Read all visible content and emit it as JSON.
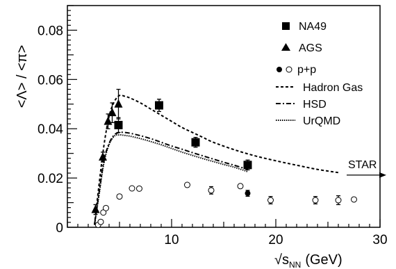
{
  "chart_data": {
    "type": "scatter",
    "xlabel": "√s_NN (GeV)",
    "xlabel_parts": {
      "root_symbol": "√",
      "base": "s",
      "subscript": "NN",
      "unit": "(GeV)"
    },
    "ylabel": "<Λ> / <π>",
    "xlim": [
      0,
      30
    ],
    "ylim": [
      0,
      0.09
    ],
    "x_ticks": [
      10,
      20,
      30
    ],
    "x_tick_labels": [
      "10",
      "20",
      "30"
    ],
    "y_ticks": [
      0,
      0.02,
      0.04,
      0.06,
      0.08
    ],
    "y_tick_labels": [
      "0",
      "0.02",
      "0.04",
      "0.06",
      "0.08"
    ],
    "grid": false,
    "legend_position": "top-right",
    "legend": {
      "markers": [
        {
          "label": "NA49",
          "symbol": "square"
        },
        {
          "label": "AGS",
          "symbol": "triangle"
        },
        {
          "label": "p+p",
          "symbol": "circle-filled-open"
        }
      ],
      "curves": [
        {
          "label": "Hadron Gas",
          "style": "dashed"
        },
        {
          "label": "HSD",
          "style": "dash-dot"
        },
        {
          "label": "UrQMD",
          "style": "dotted"
        }
      ]
    },
    "series": [
      {
        "name": "NA49",
        "marker": "square",
        "x": [
          4.9,
          8.8,
          12.3,
          17.3
        ],
        "y": [
          0.0415,
          0.0495,
          0.0345,
          0.0253
        ],
        "yerr": [
          0.003,
          0.0025,
          0.002,
          0.002
        ]
      },
      {
        "name": "AGS",
        "marker": "triangle",
        "x": [
          2.7,
          3.4,
          3.9,
          4.3,
          4.9
        ],
        "y": [
          0.0072,
          0.0285,
          0.043,
          0.0465,
          0.05
        ],
        "yerr": [
          0.002,
          0.002,
          0.003,
          0.004,
          0.006
        ]
      },
      {
        "name": "p+p (filled)",
        "marker": "circle-filled",
        "x": [
          17.3
        ],
        "y": [
          0.0138
        ],
        "yerr": [
          0.0012
        ]
      },
      {
        "name": "p+p (open)",
        "marker": "circle-open",
        "x": [
          2.95,
          3.2,
          3.45,
          3.7,
          5.0,
          6.2,
          6.9,
          11.5,
          13.8,
          16.6,
          19.5,
          23.8,
          26.0,
          27.5
        ],
        "y": [
          0.001,
          0.0022,
          0.006,
          0.0078,
          0.0125,
          0.0158,
          0.0157,
          0.0172,
          0.015,
          0.0167,
          0.011,
          0.011,
          0.011,
          0.0113
        ],
        "yerr": [
          0,
          0,
          0,
          0,
          0,
          0,
          0,
          0,
          0.0015,
          0,
          0.0015,
          0.0015,
          0.0018,
          0
        ]
      }
    ],
    "curves": [
      {
        "name": "Hadron Gas",
        "style": "dashed",
        "x": [
          2.6,
          3.0,
          3.5,
          4.0,
          4.5,
          5.0,
          5.5,
          6.0,
          7.0,
          8.0,
          9.0,
          10.0,
          11.0,
          12.0,
          13.0,
          14.0,
          16.0,
          18.0,
          20.0,
          22.0,
          24.0,
          26.0
        ],
        "y": [
          0.001,
          0.016,
          0.033,
          0.045,
          0.051,
          0.0535,
          0.0532,
          0.0525,
          0.0505,
          0.048,
          0.0455,
          0.043,
          0.0405,
          0.0385,
          0.0365,
          0.0345,
          0.0315,
          0.029,
          0.027,
          0.0252,
          0.0235,
          0.0222
        ]
      },
      {
        "name": "HSD",
        "style": "dash-dot",
        "x": [
          2.6,
          3.0,
          3.5,
          4.0,
          4.5,
          5.0,
          5.5,
          6.0,
          7.0,
          8.0,
          9.0,
          10.0,
          11.0,
          12.0,
          13.0,
          14.0,
          15.0,
          16.0,
          17.3
        ],
        "y": [
          0.001,
          0.013,
          0.027,
          0.034,
          0.0375,
          0.0385,
          0.0385,
          0.0382,
          0.0372,
          0.036,
          0.0345,
          0.033,
          0.0317,
          0.0303,
          0.029,
          0.0277,
          0.0264,
          0.0252,
          0.0235
        ]
      },
      {
        "name": "UrQMD",
        "style": "dotted",
        "x": [
          2.6,
          3.0,
          3.5,
          4.0,
          4.5,
          5.0,
          5.5,
          6.0,
          7.0,
          8.0,
          9.0,
          10.0,
          11.0,
          12.0,
          13.0,
          14.0,
          15.0,
          16.0,
          17.3
        ],
        "y": [
          0.001,
          0.012,
          0.026,
          0.0335,
          0.037,
          0.0375,
          0.0373,
          0.037,
          0.036,
          0.0348,
          0.0335,
          0.032,
          0.0305,
          0.0292,
          0.0279,
          0.0267,
          0.0255,
          0.0244,
          0.0226
        ]
      }
    ],
    "annotations": [
      {
        "text": "STAR",
        "arrow": "right",
        "x": 27.2,
        "y": 0.0212
      }
    ]
  }
}
